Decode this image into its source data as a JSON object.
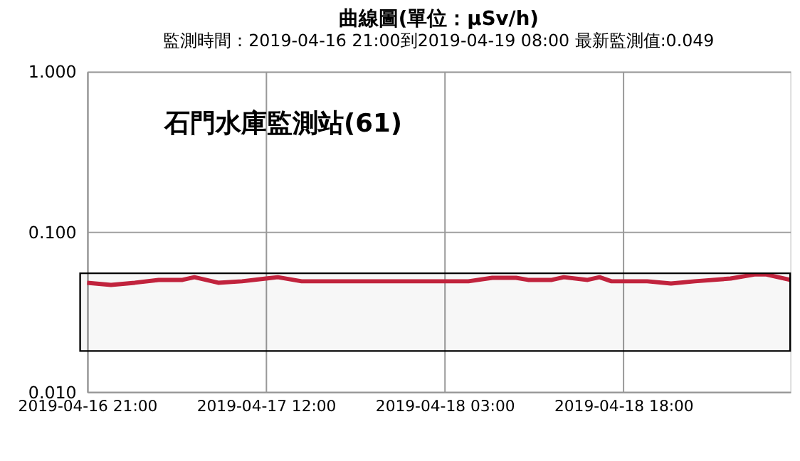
{
  "chart_data": {
    "type": "line",
    "title": "曲線圖(單位：μSv/h)",
    "subtitle": "監測時間：2019-04-16 21:00到2019-04-19 08:00 最新監測值:0.049",
    "annotations": [
      "石門水庫監測站(61)"
    ],
    "series": [
      {
        "color": "#c8253f",
        "x": [
          "2019-04-16T21:00",
          "2019-04-16T23:00",
          "2019-04-17T01:00",
          "2019-04-17T03:00",
          "2019-04-17T05:00",
          "2019-04-17T06:00",
          "2019-04-17T08:00",
          "2019-04-17T10:00",
          "2019-04-17T12:00",
          "2019-04-17T13:00",
          "2019-04-17T15:00",
          "2019-04-18T02:00",
          "2019-04-18T05:00",
          "2019-04-18T07:00",
          "2019-04-18T09:00",
          "2019-04-18T10:00",
          "2019-04-18T12:00",
          "2019-04-18T13:00",
          "2019-04-18T15:00",
          "2019-04-18T16:00",
          "2019-04-18T17:00",
          "2019-04-18T20:00",
          "2019-04-18T22:00",
          "2019-04-19T00:00",
          "2019-04-19T03:00",
          "2019-04-19T05:00",
          "2019-04-19T06:00",
          "2019-04-19T08:00"
        ],
        "values": [
          0.048,
          0.0465,
          0.048,
          0.05,
          0.05,
          0.052,
          0.048,
          0.049,
          0.051,
          0.052,
          0.049,
          0.049,
          0.049,
          0.0515,
          0.0515,
          0.05,
          0.05,
          0.052,
          0.05,
          0.052,
          0.049,
          0.049,
          0.0475,
          0.049,
          0.051,
          0.054,
          0.054,
          0.05
        ]
      }
    ],
    "xlim": [
      "2019-04-16T21:00",
      "2019-04-19T08:00"
    ],
    "xticks": [
      {
        "value": "2019-04-16T21:00",
        "label": "2019-04-16 21:00"
      },
      {
        "value": "2019-04-17T12:00",
        "label": "2019-04-17 12:00"
      },
      {
        "value": "2019-04-18T03:00",
        "label": "2019-04-18 03:00"
      },
      {
        "value": "2019-04-18T18:00",
        "label": "2019-04-18 18:00"
      }
    ],
    "log": true,
    "ylim": [
      0.01,
      1
    ],
    "yticks": [
      {
        "value": 0.01,
        "label": "0.010"
      },
      {
        "value": 0.1,
        "label": "0.100"
      },
      {
        "value": 1,
        "label": "1.000"
      }
    ],
    "bands": [
      {
        "axis": "y",
        "from": 0.018,
        "to": 0.055,
        "color": "#000000"
      }
    ],
    "grid": true,
    "marker": "none",
    "line_style": "solid"
  }
}
